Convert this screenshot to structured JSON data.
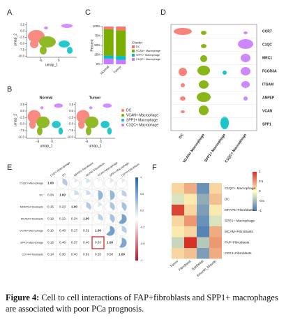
{
  "clusters": [
    {
      "name": "DC",
      "color": "#f8766d"
    },
    {
      "name": "VCAN+ Macrophage",
      "color": "#7cae00"
    },
    {
      "name": "SPP1+ Macrophage",
      "color": "#00bfc4"
    },
    {
      "name": "C1QC+ Macrophage",
      "color": "#c77cff"
    }
  ],
  "panels": {
    "A": {
      "label": "A",
      "xlabel": "umap_1",
      "ylabel": "umap_2",
      "xlim": [
        -9,
        5
      ],
      "ylim": [
        -10.5,
        3.5
      ],
      "xticks": [
        -5,
        0
      ],
      "yticks": [
        2.5,
        {
          "value": 0,
          "label": "0.0"
        },
        -2.5,
        {
          "value": -5,
          "label": "-5.0"
        },
        -7.5,
        {
          "value": -10,
          "label": "-10.0"
        }
      ]
    },
    "B": {
      "label": "B",
      "plots": [
        {
          "title": "Normal"
        },
        {
          "title": "Tumor"
        }
      ],
      "xlabel": "umap_1",
      "ylabel": "umap_2",
      "xlim": [
        -9,
        5
      ],
      "ylim": [
        -10.5,
        3.5
      ],
      "xticks": [
        -5,
        0
      ],
      "yticks": [
        2.5,
        {
          "value": 0,
          "label": "0.0"
        },
        -2.5,
        {
          "value": -5,
          "label": "-5.0"
        },
        -7.5,
        {
          "value": -10,
          "label": "-10.0"
        }
      ]
    },
    "C": {
      "label": "C",
      "type": "bar",
      "stacked": true,
      "categories": [
        "Normal",
        "Tumor"
      ],
      "ylabel": "Percent",
      "legend_title": "Cluster",
      "series": [
        {
          "name": "C1QC+ Macrophage",
          "color": "#c77cff",
          "values": [
            15,
            12
          ]
        },
        {
          "name": "SPP1+ Macrophage",
          "color": "#00bfc4",
          "values": [
            8,
            10
          ]
        },
        {
          "name": "VCAN+ Macrophage",
          "color": "#7cae00",
          "values": [
            70,
            68
          ]
        },
        {
          "name": "DC",
          "color": "#f8766d",
          "values": [
            7,
            10
          ]
        }
      ],
      "ylim": [
        0,
        100
      ],
      "yticks": [
        {
          "value": 0,
          "label": "0%"
        },
        {
          "value": 25,
          "label": "25%"
        },
        {
          "value": 50,
          "label": "50%"
        },
        {
          "value": 75,
          "label": "75%"
        },
        {
          "value": 100,
          "label": "100%"
        }
      ]
    },
    "D": {
      "label": "D",
      "genes": [
        "CCR7",
        "C1QC",
        "MRC1",
        "FCGR3A",
        "ITGAM",
        "ANPEP",
        "VCAN",
        "SPP1"
      ],
      "groups": [
        "DC",
        "VCAN+ Macrophage",
        "SPP1+ Macrophage",
        "C1QC+ Macrophage"
      ]
    },
    "E": {
      "label": "E",
      "labels": [
        "C1QC+Macrophage",
        "DC",
        "MFAP5+Fibroblasts",
        "MCAM+Fibroblasts",
        "VCAN+Macrophage",
        "SPP1+Macrophage",
        "CD74+Fibroblasts"
      ],
      "matrix": [
        [
          1
        ],
        [
          0.34,
          1
        ],
        [
          0.15,
          0.23,
          1
        ],
        [
          0.19,
          0.22,
          0.34,
          1
        ],
        [
          0.1,
          0.48,
          0.17,
          0.31,
          1
        ],
        [
          0.16,
          0.48,
          0.37,
          0.4,
          0.63,
          1
        ],
        [
          0.14,
          0.3,
          0.4,
          0.61,
          0.33,
          0.58,
          1
        ]
      ],
      "matrix_labels": [
        [
          "1.00"
        ],
        [
          "0.34",
          "1.00"
        ],
        [
          "0.15",
          "0.23",
          "1.00"
        ],
        [
          "0.19",
          "0.22",
          "0.34",
          "1.00"
        ],
        [
          "0.10",
          "0.48",
          "0.17",
          "0.31",
          "1.00"
        ],
        [
          "0.16",
          "0.48",
          "0.37",
          "0.40",
          "0.63",
          "1.00"
        ],
        [
          "0.14",
          "0.30",
          "0.40",
          "0.61",
          "0.33",
          "0.58",
          "1.00"
        ]
      ],
      "clim": [
        -1,
        1
      ],
      "color_ticks": [
        1,
        0.6,
        0.2,
        -0.2,
        -0.6,
        -1
      ]
    },
    "F": {
      "label": "F",
      "rows": [
        "C1QC+ Macrophage",
        "DC",
        "MFAP5+Fibroblasts",
        "SPP1+ Macrophage",
        "MCAM+Fibroblasts",
        "FAP+Fibroblasts",
        "CD74+Fibroblasts"
      ],
      "row_colors": [
        "#222222",
        "#222222",
        "#222222",
        "#e0702a",
        "#222222",
        "#e0702a",
        "#222222"
      ],
      "columns": [
        "Tumor",
        "Fibroblast",
        "Epithelial",
        "Smooth_Muscle"
      ],
      "values": [
        [
          0.2,
          0.4,
          -0.8,
          0.2
        ],
        [
          -0.2,
          0.1,
          -0.6,
          0.3
        ],
        [
          0.9,
          0.2,
          -0.7,
          0.1
        ],
        [
          0.2,
          0.5,
          -0.8,
          -0.2
        ],
        [
          0.1,
          0.2,
          -0.9,
          0.4
        ],
        [
          -0.3,
          1,
          -0.4,
          0.5
        ],
        [
          0.2,
          0.3,
          -0.7,
          0.4
        ]
      ],
      "clim": [
        -1,
        1
      ],
      "color_ticks": [
        1,
        0.5,
        0,
        -0.5,
        -1
      ]
    }
  },
  "caption": {
    "label": "Figure 4:",
    "text": "Cell to cell interactions of FAP+fibroblasts and SPP1+ macrophages are associated with poor PCa prognosis."
  }
}
